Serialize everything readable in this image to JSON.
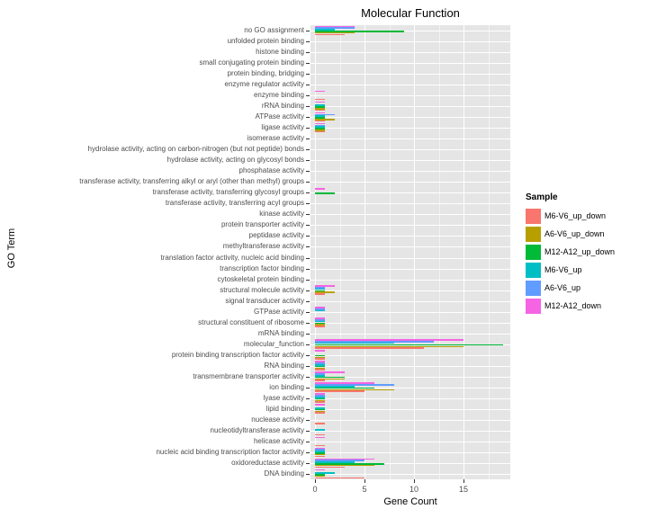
{
  "title": "Molecular Function",
  "xlabel": "Gene Count",
  "ylabel": "GO Term",
  "legend": {
    "title": "Sample"
  },
  "chart_data": {
    "type": "bar",
    "orientation": "horizontal",
    "title": "Molecular Function",
    "xlabel": "Gene Count",
    "ylabel": "GO Term",
    "xlim": [
      0,
      19.7
    ],
    "x_ticks": [
      0,
      5,
      10,
      15
    ],
    "x_minor_ticks": [
      2.5,
      7.5,
      12.5,
      17.5
    ],
    "grid": true,
    "panel_background": "#E5E5E5",
    "legend_title": "Sample",
    "legend_position": "right",
    "categories": [
      "no GO assignment",
      "unfolded protein binding",
      "histone binding",
      "small conjugating protein binding",
      "protein binding, bridging",
      "enzyme regulator activity",
      "enzyme binding",
      "rRNA binding",
      "ATPase activity",
      "ligase activity",
      "isomerase activity",
      "hydrolase activity, acting on carbon-nitrogen (but not peptide) bonds",
      "hydrolase activity, acting on glycosyl bonds",
      "phosphatase activity",
      "transferase activity, transferring alkyl or aryl (other than methyl) groups",
      "transferase activity, transferring glycosyl groups",
      "transferase activity, transferring acyl groups",
      "kinase activity",
      "protein transporter activity",
      "peptidase activity",
      "methyltransferase activity",
      "translation factor activity, nucleic acid binding",
      "transcription factor binding",
      "cytoskeletal protein binding",
      "structural molecule activity",
      "signal transducer activity",
      "GTPase activity",
      "structural constituent of ribosome",
      "mRNA binding",
      "molecular_function",
      "protein binding transcription factor activity",
      "RNA binding",
      "transmembrane transporter activity",
      "ion binding",
      "lyase activity",
      "lipid binding",
      "nuclease activity",
      "nucleotidyltransferase activity",
      "helicase activity",
      "nucleic acid binding transcription factor activity",
      "oxidoreductase activity",
      "DNA binding"
    ],
    "series": [
      {
        "name": "M6-V6_up_down",
        "color": "#F8766D",
        "values": [
          3,
          0,
          0,
          0,
          0,
          0,
          1,
          1,
          1,
          1,
          0,
          0,
          0,
          0,
          0,
          0,
          0,
          0,
          0,
          0,
          0,
          0,
          0,
          0,
          1,
          0,
          0,
          1,
          0,
          11,
          1,
          1,
          1,
          5,
          1,
          1,
          1,
          1,
          1,
          1,
          3,
          5
        ]
      },
      {
        "name": "A6-V6_up_down",
        "color": "#B79F00",
        "values": [
          4,
          0,
          0,
          0,
          0,
          0,
          0,
          1,
          2,
          1,
          0,
          0,
          0,
          0,
          0,
          0,
          0,
          0,
          0,
          0,
          0,
          0,
          0,
          0,
          2,
          0,
          0,
          1,
          0,
          15,
          1,
          1,
          3,
          8,
          1,
          1,
          0,
          0,
          0,
          1,
          6,
          1
        ]
      },
      {
        "name": "M12-A12_up_down",
        "color": "#00BA38",
        "values": [
          9,
          0,
          0,
          0,
          0,
          0,
          0,
          1,
          1,
          1,
          0,
          0,
          0,
          0,
          0,
          2,
          0,
          0,
          0,
          0,
          0,
          0,
          0,
          0,
          1,
          0,
          0,
          1,
          0,
          19,
          1,
          1,
          3,
          6,
          1,
          1,
          0,
          0,
          0,
          1,
          7,
          1
        ]
      },
      {
        "name": "M6-V6_up",
        "color": "#00BFC4",
        "values": [
          2,
          0,
          0,
          0,
          0,
          0,
          0,
          1,
          1,
          1,
          0,
          0,
          0,
          0,
          0,
          0,
          0,
          0,
          0,
          0,
          0,
          0,
          0,
          0,
          1,
          0,
          1,
          1,
          0,
          8,
          0,
          1,
          1,
          4,
          1,
          1,
          0,
          1,
          0,
          1,
          4,
          2
        ]
      },
      {
        "name": "A6-V6_up",
        "color": "#619CFF",
        "values": [
          4,
          0,
          0,
          0,
          0,
          0,
          0,
          0,
          2,
          1,
          0,
          0,
          0,
          0,
          0,
          0,
          0,
          0,
          0,
          0,
          0,
          0,
          0,
          0,
          1,
          0,
          1,
          1,
          0,
          12,
          0,
          1,
          1,
          8,
          1,
          0,
          0,
          0,
          0,
          1,
          5,
          0
        ]
      },
      {
        "name": "M12-A12_down",
        "color": "#F564E3",
        "values": [
          4,
          0,
          0,
          0,
          0,
          0,
          1,
          1,
          1,
          1,
          0,
          0,
          0,
          0,
          0,
          1,
          0,
          0,
          0,
          0,
          0,
          0,
          0,
          0,
          2,
          0,
          1,
          1,
          0,
          15,
          1,
          1,
          3,
          6,
          1,
          1,
          0,
          0,
          1,
          1,
          6,
          1
        ]
      }
    ]
  }
}
